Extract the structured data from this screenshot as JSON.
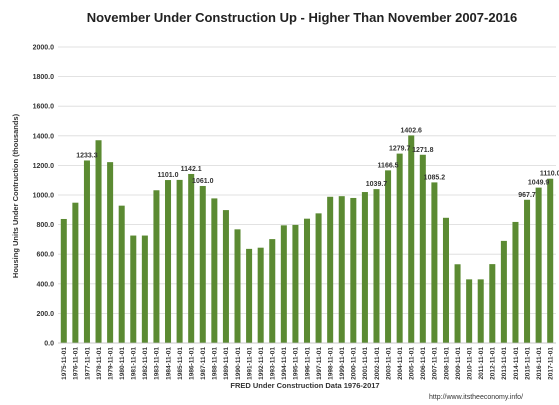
{
  "chart_data": {
    "type": "bar",
    "title": "November Under Construction Up - Higher Than November 2007-2016",
    "xlabel": "FRED Under Construction Data 1976-2017",
    "ylabel": "Housing Units Under Contruction (thousands)",
    "ylim": [
      0,
      2000
    ],
    "yticks": [
      "0.0",
      "200.0",
      "400.0",
      "600.0",
      "800.0",
      "1000.0",
      "1200.0",
      "1400.0",
      "1600.0",
      "1800.0",
      "2000.0"
    ],
    "ytick_values": [
      0,
      200,
      400,
      600,
      800,
      1000,
      1200,
      1400,
      1600,
      1800,
      2000
    ],
    "grid": true,
    "bar_color": "#5b8a32",
    "categories": [
      "1975-11-01",
      "1976-11-01",
      "1977-11-01",
      "1978-11-01",
      "1979-11-01",
      "1980-11-01",
      "1981-11-01",
      "1982-11-01",
      "1983-11-01",
      "1984-11-01",
      "1985-11-01",
      "1986-11-01",
      "1987-11-01",
      "1988-11-01",
      "1989-11-01",
      "1990-11-01",
      "1991-11-01",
      "1992-11-01",
      "1993-11-01",
      "1994-11-01",
      "1995-11-01",
      "1996-11-01",
      "1997-11-01",
      "1998-11-01",
      "1999-11-01",
      "2000-11-01",
      "2001-11-01",
      "2002-11-01",
      "2003-11-01",
      "2004-11-01",
      "2005-11-01",
      "2006-11-01",
      "2007-11-01",
      "2008-11-01",
      "2009-11-01",
      "2010-11-01",
      "2011-11-01",
      "2012-11-01",
      "2013-11-01",
      "2014-11-01",
      "2015-11-01",
      "2016-11-01",
      "2017-11-01"
    ],
    "values": [
      838,
      948,
      1233.3,
      1370,
      1222,
      928,
      726,
      726,
      1032,
      1101.0,
      1102,
      1142.1,
      1061.0,
      977,
      898,
      768,
      636,
      644,
      702,
      795,
      798,
      840,
      876,
      988,
      992,
      980,
      1020,
      1039.7,
      1166.5,
      1279.7,
      1402.6,
      1271.8,
      1085.2,
      846,
      532,
      430,
      430,
      533,
      690,
      818,
      967.7,
      1049.9,
      1110.0
    ],
    "data_labels": [
      {
        "index": 2,
        "text": "1233.3"
      },
      {
        "index": 9,
        "text": "1101.0"
      },
      {
        "index": 11,
        "text": "1142.1"
      },
      {
        "index": 12,
        "text": "1061.0"
      },
      {
        "index": 27,
        "text": "1039.7"
      },
      {
        "index": 28,
        "text": "1166.5"
      },
      {
        "index": 29,
        "text": "1279.7"
      },
      {
        "index": 30,
        "text": "1402.6"
      },
      {
        "index": 31,
        "text": "1271.8"
      },
      {
        "index": 32,
        "text": "1085.2"
      },
      {
        "index": 40,
        "text": "967.7"
      },
      {
        "index": 41,
        "text": "1049.9"
      },
      {
        "index": 42,
        "text": "1110.0"
      }
    ]
  },
  "watermark": "http://www.itstheeconomy.info/"
}
